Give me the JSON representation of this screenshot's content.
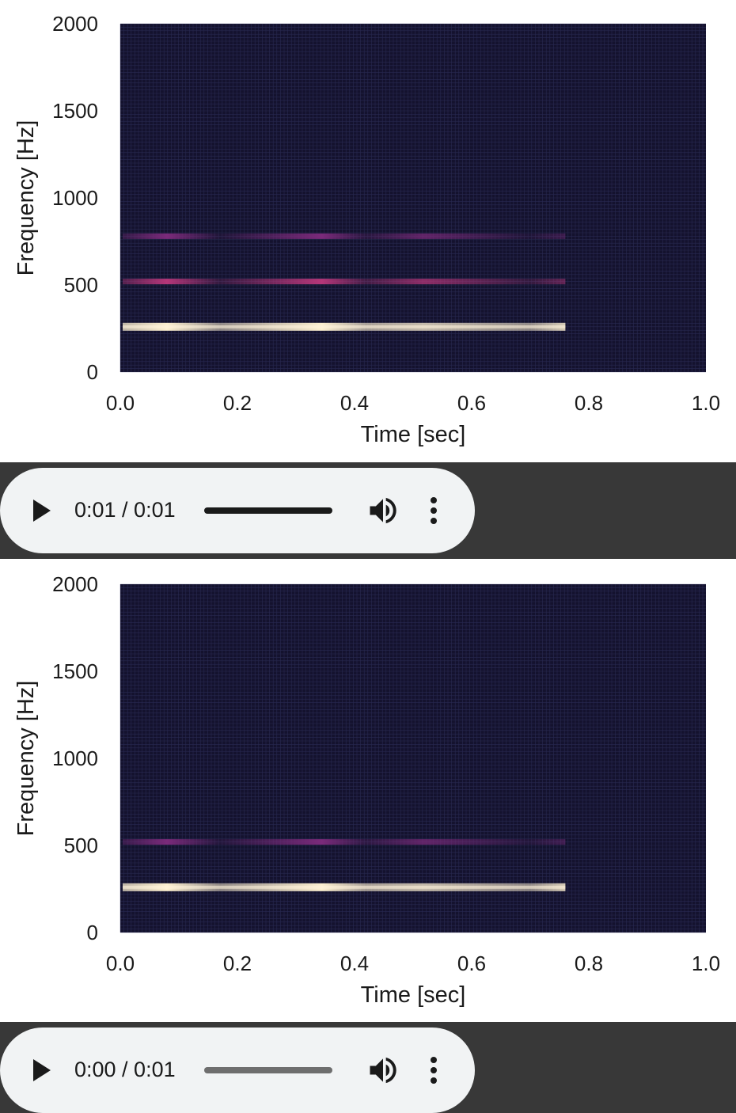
{
  "chart_data": [
    {
      "type": "heatmap",
      "title": "",
      "xlabel": "Time [sec]",
      "ylabel": "Frequency [Hz]",
      "xlim": [
        0.0,
        1.0
      ],
      "ylim": [
        0,
        2000
      ],
      "xticks": [
        "0.0",
        "0.2",
        "0.4",
        "0.6",
        "0.8",
        "1.0"
      ],
      "yticks": [
        "0",
        "500",
        "1000",
        "1500",
        "2000"
      ],
      "colormap": "magma-like",
      "grid": true,
      "signal_end_sec": 0.76,
      "bands": [
        {
          "freq_hz": 260,
          "intensity": 0.95
        },
        {
          "freq_hz": 520,
          "intensity": 0.35
        },
        {
          "freq_hz": 780,
          "intensity": 0.18
        }
      ]
    },
    {
      "type": "heatmap",
      "title": "",
      "xlabel": "Time [sec]",
      "ylabel": "Frequency [Hz]",
      "xlim": [
        0.0,
        1.0
      ],
      "ylim": [
        0,
        2000
      ],
      "xticks": [
        "0.0",
        "0.2",
        "0.4",
        "0.6",
        "0.8",
        "1.0"
      ],
      "yticks": [
        "0",
        "500",
        "1000",
        "1500",
        "2000"
      ],
      "colormap": "magma-like",
      "grid": true,
      "signal_end_sec": 0.76,
      "bands": [
        {
          "freq_hz": 260,
          "intensity": 0.95
        },
        {
          "freq_hz": 520,
          "intensity": 0.25
        }
      ]
    }
  ],
  "players": [
    {
      "time_display": "0:01 / 0:01",
      "progress": 1.0
    },
    {
      "time_display": "0:00 / 0:01",
      "progress": 0.0
    }
  ],
  "icons": {
    "play": "play-icon",
    "volume": "volume-icon",
    "more": "more-vert-icon"
  },
  "colors": {
    "plot_bg": "#14122e",
    "band_dark": "#383838",
    "player_bg": "#f1f3f4"
  }
}
